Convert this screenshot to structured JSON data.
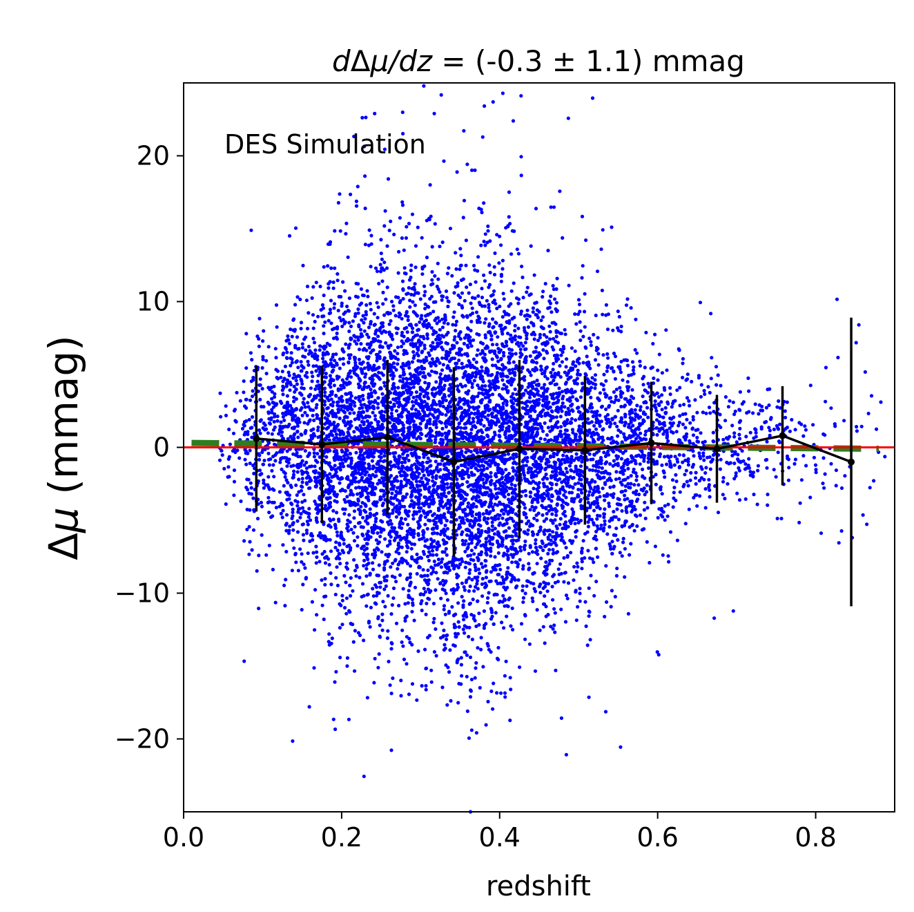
{
  "chart_data": {
    "type": "scatter",
    "title_parts": [
      "d",
      "Δ",
      "μ",
      "/",
      "dz",
      " = (-0.3 ± 1.1) mmag"
    ],
    "annotation": "DES Simulation",
    "xlabel": "redshift",
    "ylabel_parts": [
      "Δ",
      "μ",
      " (mmag)"
    ],
    "xlim": [
      0.0,
      0.9
    ],
    "ylim": [
      -25,
      25
    ],
    "xticks": [
      0.0,
      0.2,
      0.4,
      0.6,
      0.8
    ],
    "xtick_labels": [
      "0.0",
      "0.2",
      "0.4",
      "0.6",
      "0.8"
    ],
    "yticks": [
      -20,
      -10,
      0,
      10,
      20
    ],
    "ytick_labels": [
      "−20",
      "−10",
      "0",
      "10",
      "20"
    ],
    "grid": false,
    "colors": {
      "scatter": "#0000ff",
      "binned": "#000000",
      "fit": "#2e7d1e",
      "zero_line": "#ff0000"
    },
    "series": [
      {
        "kind": "binned-mean-with-errorbars",
        "x": [
          0.092,
          0.175,
          0.258,
          0.342,
          0.425,
          0.508,
          0.592,
          0.675,
          0.758,
          0.845
        ],
        "y": [
          0.6,
          0.2,
          0.7,
          -1.0,
          -0.1,
          -0.2,
          0.3,
          -0.1,
          0.8,
          -1.0
        ],
        "yerr": [
          5.0,
          5.4,
          5.3,
          6.5,
          6.1,
          5.1,
          4.2,
          3.7,
          3.4,
          9.9
        ]
      },
      {
        "kind": "linear-fit",
        "x": [
          0.01,
          0.88
        ],
        "y": [
          0.3,
          -0.1
        ]
      },
      {
        "kind": "zero-line",
        "y": 0
      }
    ],
    "scatter_envelope": {
      "description_points_per_bin": "dense",
      "x": [
        0.05,
        0.1,
        0.15,
        0.2,
        0.25,
        0.3,
        0.35,
        0.4,
        0.45,
        0.5,
        0.55,
        0.6,
        0.65,
        0.7,
        0.75,
        0.8,
        0.85,
        0.88
      ],
      "center": [
        0.3,
        0.4,
        0.3,
        0.4,
        0.4,
        0.2,
        -1.0,
        -0.3,
        0.0,
        -0.2,
        0.1,
        0.3,
        0.1,
        0.0,
        0.5,
        0.0,
        -0.5,
        0.0
      ],
      "spread": [
        3.0,
        4.5,
        6.0,
        7.0,
        7.5,
        8.0,
        8.5,
        8.0,
        7.0,
        6.0,
        5.0,
        4.0,
        3.2,
        2.8,
        2.6,
        2.8,
        4.0,
        3.0
      ],
      "count": [
        60,
        260,
        520,
        820,
        1000,
        1050,
        1100,
        1050,
        850,
        620,
        420,
        260,
        160,
        110,
        70,
        35,
        20,
        8
      ]
    }
  }
}
